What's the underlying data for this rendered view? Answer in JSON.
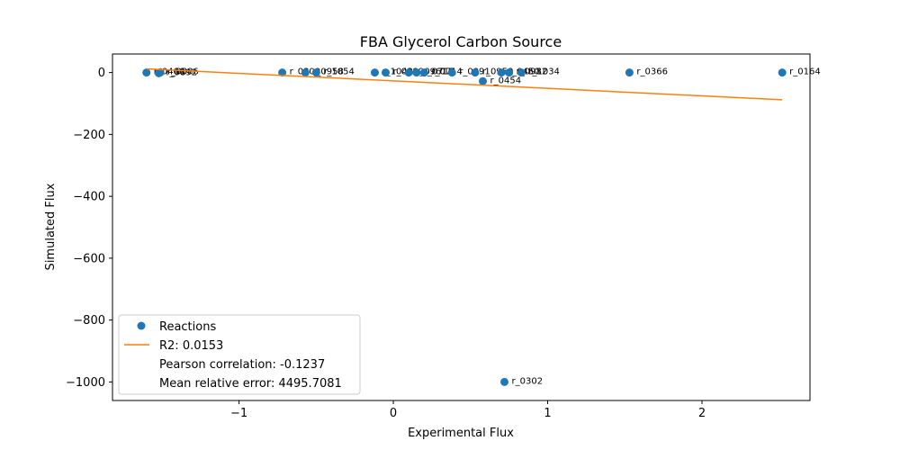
{
  "chart_data": {
    "type": "scatter",
    "title": "FBA Glycerol Carbon Source",
    "xlabel": "Experimental Flux",
    "ylabel": "Simulated Flux",
    "xlim": [
      -1.82,
      2.7
    ],
    "ylim": [
      -1060,
      60
    ],
    "xticks": [
      {
        "value": -1,
        "label": "−1"
      },
      {
        "value": 0,
        "label": "0"
      },
      {
        "value": 1,
        "label": "1"
      },
      {
        "value": 2,
        "label": "2"
      }
    ],
    "yticks": [
      {
        "value": 0,
        "label": "0"
      },
      {
        "value": -200,
        "label": "−200"
      },
      {
        "value": -400,
        "label": "−400"
      },
      {
        "value": -600,
        "label": "−600"
      },
      {
        "value": -800,
        "label": "−800"
      },
      {
        "value": -1000,
        "label": "−1000"
      }
    ],
    "grid": false,
    "legend_position": "lower-left",
    "series": [
      {
        "name": "Reactions",
        "kind": "points",
        "color": "#1f77b4",
        "points": [
          {
            "x": -1.6,
            "y": 0,
            "label": "r_0466"
          },
          {
            "x": -1.52,
            "y": -2,
            "label": "r_0892"
          },
          {
            "x": -1.51,
            "y": 1,
            "label": "r_0886"
          },
          {
            "x": -0.72,
            "y": 0,
            "label": "r_0300"
          },
          {
            "x": -0.57,
            "y": 0,
            "label": "r_0958"
          },
          {
            "x": -0.5,
            "y": 0,
            "label": "r_1054"
          },
          {
            "x": -0.12,
            "y": 0,
            "label": "r_1049"
          },
          {
            "x": -0.05,
            "y": 0,
            "label": "r_0889"
          },
          {
            "x": 0.1,
            "y": 0,
            "label": "r_0961"
          },
          {
            "x": 0.15,
            "y": 0,
            "label": "r_0713"
          },
          {
            "x": 0.2,
            "y": 0,
            "label": "r_0714"
          },
          {
            "x": 0.38,
            "y": 0,
            "label": "r_0091"
          },
          {
            "x": 0.53,
            "y": 0,
            "label": "r_0959"
          },
          {
            "x": 0.58,
            "y": -28,
            "label": "r_0454"
          },
          {
            "x": 0.7,
            "y": 0,
            "label": "r_0450"
          },
          {
            "x": 0.72,
            "y": -1000,
            "label": "r_0302"
          },
          {
            "x": 0.75,
            "y": 0,
            "label": "r_0982"
          },
          {
            "x": 0.83,
            "y": 0,
            "label": "r_1034"
          },
          {
            "x": 1.53,
            "y": 0,
            "label": "r_0366"
          },
          {
            "x": 2.52,
            "y": 0,
            "label": "r_0164"
          }
        ]
      },
      {
        "name": "R2: 0.0153",
        "kind": "line",
        "color": "#ff7f0e",
        "x": [
          -1.6,
          2.52
        ],
        "y": [
          12,
          -88
        ]
      }
    ],
    "legend_extra": [
      "Pearson correlation: -0.1237",
      "Mean relative error: 4495.7081"
    ]
  }
}
